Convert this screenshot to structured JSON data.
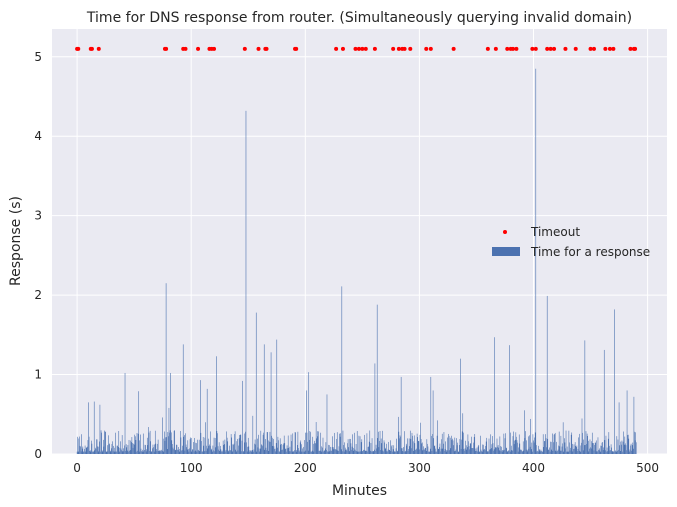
{
  "chart_data": {
    "type": "bar",
    "title": "Time for DNS response from router. (Simultaneously querying invalid domain)",
    "xlabel": "Minutes",
    "ylabel": "Response (s)",
    "xlim": [
      -22,
      517
    ],
    "ylim": [
      0,
      5.35
    ],
    "x_ticks": [
      0,
      100,
      200,
      300,
      400,
      500
    ],
    "y_ticks": [
      0,
      1,
      2,
      3,
      4,
      5
    ],
    "grid": true,
    "style": "seaborn-darkgrid",
    "legend_position": "center-right",
    "colors": {
      "background": "#eaeaf2",
      "grid": "#ffffff",
      "bars": "#4c72b0",
      "timeout": "#ff0000"
    },
    "bar_width_minutes": 0.1,
    "baseline_range": [
      0.03,
      0.3
    ],
    "baseline_seed": 17,
    "peaks": [
      {
        "x": 2,
        "y": 0.22
      },
      {
        "x": 10,
        "y": 0.65
      },
      {
        "x": 15,
        "y": 0.66
      },
      {
        "x": 20,
        "y": 0.62
      },
      {
        "x": 42,
        "y": 1.02
      },
      {
        "x": 54,
        "y": 0.79
      },
      {
        "x": 75,
        "y": 0.46
      },
      {
        "x": 78,
        "y": 2.15
      },
      {
        "x": 82,
        "y": 1.02
      },
      {
        "x": 93,
        "y": 1.38
      },
      {
        "x": 108,
        "y": 0.93
      },
      {
        "x": 114,
        "y": 0.82
      },
      {
        "x": 122,
        "y": 1.23
      },
      {
        "x": 145,
        "y": 0.92
      },
      {
        "x": 148,
        "y": 4.32
      },
      {
        "x": 157,
        "y": 1.78
      },
      {
        "x": 164,
        "y": 1.38
      },
      {
        "x": 170,
        "y": 1.28
      },
      {
        "x": 175,
        "y": 1.44
      },
      {
        "x": 201,
        "y": 0.8
      },
      {
        "x": 203,
        "y": 1.03
      },
      {
        "x": 219,
        "y": 0.75
      },
      {
        "x": 232,
        "y": 2.11
      },
      {
        "x": 261,
        "y": 1.14
      },
      {
        "x": 263,
        "y": 1.88
      },
      {
        "x": 284,
        "y": 0.97
      },
      {
        "x": 310,
        "y": 0.97
      },
      {
        "x": 312,
        "y": 0.8
      },
      {
        "x": 336,
        "y": 1.2
      },
      {
        "x": 366,
        "y": 1.47
      },
      {
        "x": 379,
        "y": 1.37
      },
      {
        "x": 392,
        "y": 0.55
      },
      {
        "x": 402,
        "y": 4.85
      },
      {
        "x": 412,
        "y": 1.99
      },
      {
        "x": 445,
        "y": 1.43
      },
      {
        "x": 462,
        "y": 1.31
      },
      {
        "x": 471,
        "y": 1.82
      },
      {
        "x": 475,
        "y": 0.65
      },
      {
        "x": 482,
        "y": 0.8
      },
      {
        "x": 488,
        "y": 0.72
      }
    ],
    "timeouts": {
      "y": 5.1,
      "x": [
        0,
        1,
        12,
        13,
        19,
        77,
        78,
        93,
        95,
        106,
        116,
        118,
        120,
        147,
        159,
        165,
        166,
        191,
        192,
        227,
        233,
        244,
        247,
        250,
        253,
        261,
        277,
        282,
        285,
        287,
        292,
        306,
        310,
        330,
        360,
        367,
        377,
        380,
        382,
        385,
        399,
        402,
        412,
        415,
        418,
        428,
        437,
        450,
        453,
        463,
        467,
        470,
        485,
        488,
        489
      ]
    },
    "series": [
      {
        "name": "Timeout",
        "kind": "scatter",
        "color": "#ff0000"
      },
      {
        "name": "Time for a response",
        "kind": "bar",
        "color": "#4c72b0"
      }
    ]
  }
}
